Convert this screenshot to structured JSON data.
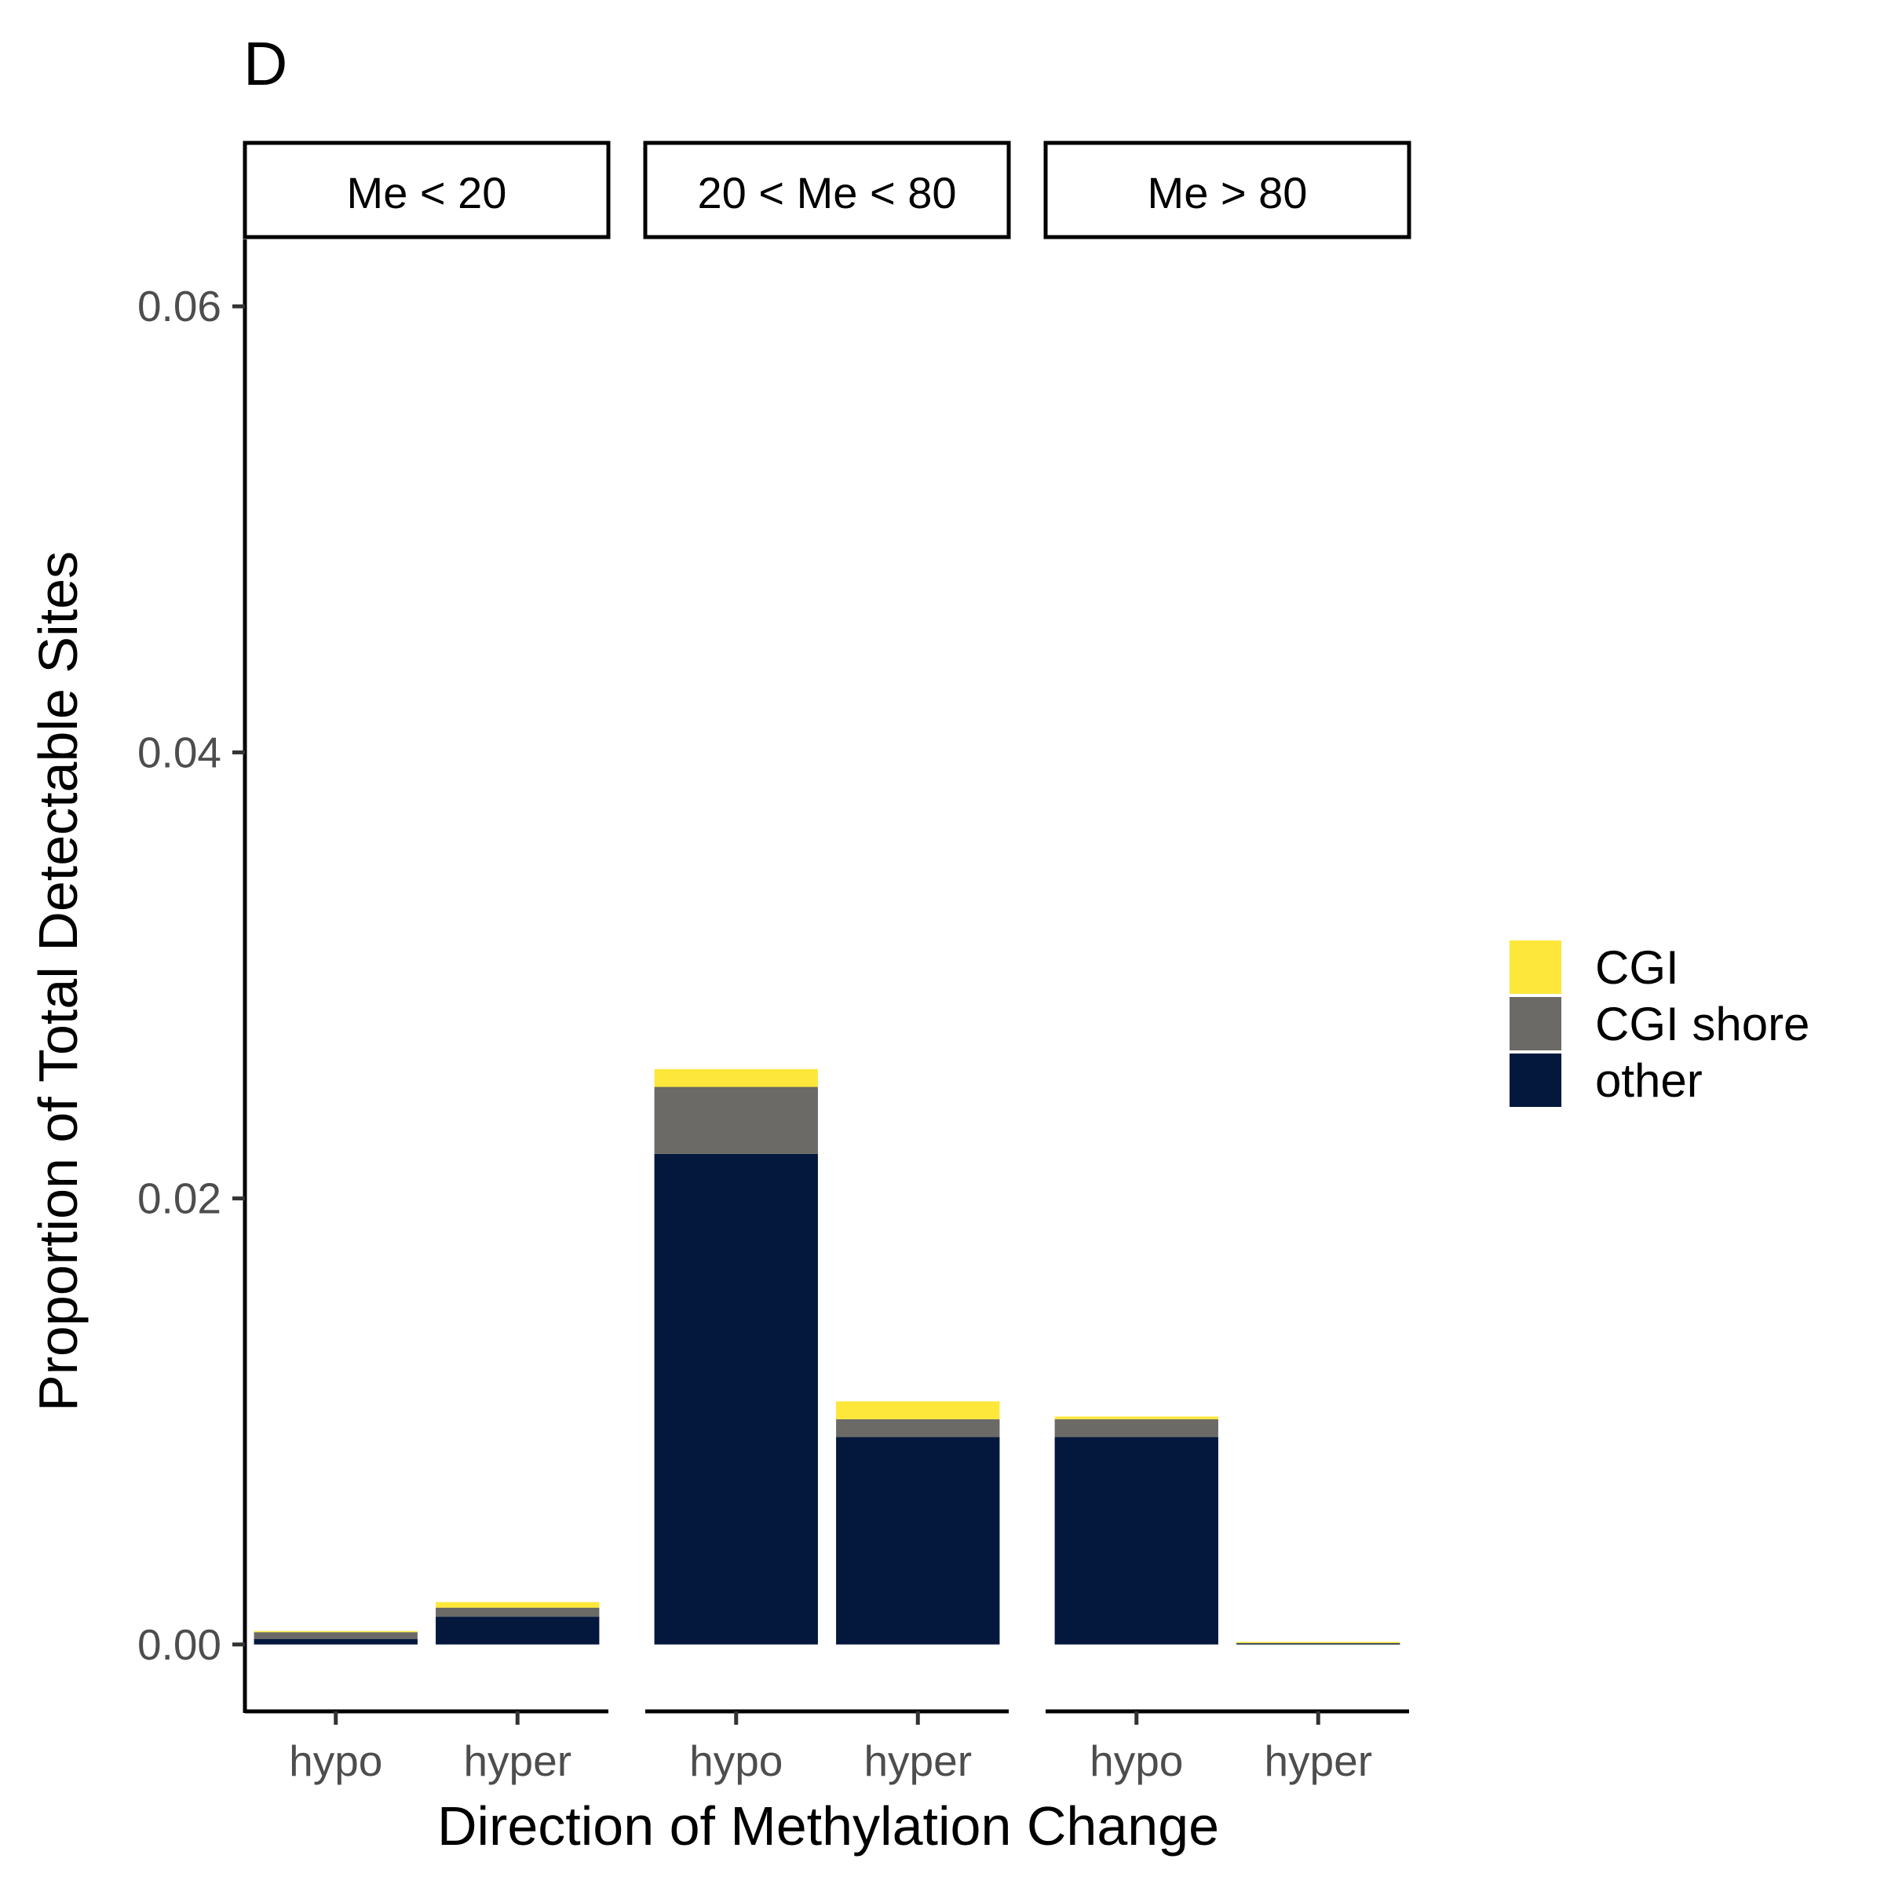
{
  "panel_label": "D",
  "chart_data": {
    "type": "bar",
    "stacked": true,
    "facets": [
      "Me < 20",
      "20 < Me < 80",
      "Me > 80"
    ],
    "categories": [
      "hypo",
      "hyper"
    ],
    "xlabel": "Direction of Methylation Change",
    "ylabel": "Proportion of Total Detectable Sites",
    "ylim": [
      -0.003,
      0.063
    ],
    "yticks": [
      0.0,
      0.02,
      0.04,
      0.06
    ],
    "ytick_labels": [
      "0.00",
      "0.02",
      "0.04",
      "0.06"
    ],
    "legend": {
      "placement": "right",
      "entries": [
        "CGI",
        "CGI shore",
        "other"
      ]
    },
    "colors": {
      "CGI": "#fde73a",
      "CGI shore": "#6b6a66",
      "other": "#03183c"
    },
    "series": [
      {
        "name": "other",
        "values": [
          [
            0.00025,
            0.00125
          ],
          [
            0.022,
            0.0093
          ],
          [
            0.0093,
            5e-05
          ]
        ]
      },
      {
        "name": "CGI shore",
        "values": [
          [
            0.0003,
            0.0004
          ],
          [
            0.003,
            0.0008
          ],
          [
            0.0008,
            1e-05
          ]
        ]
      },
      {
        "name": "CGI",
        "values": [
          [
            2e-05,
            0.00025
          ],
          [
            0.0008,
            0.0008
          ],
          [
            0.00012,
            1e-05
          ]
        ]
      }
    ]
  }
}
